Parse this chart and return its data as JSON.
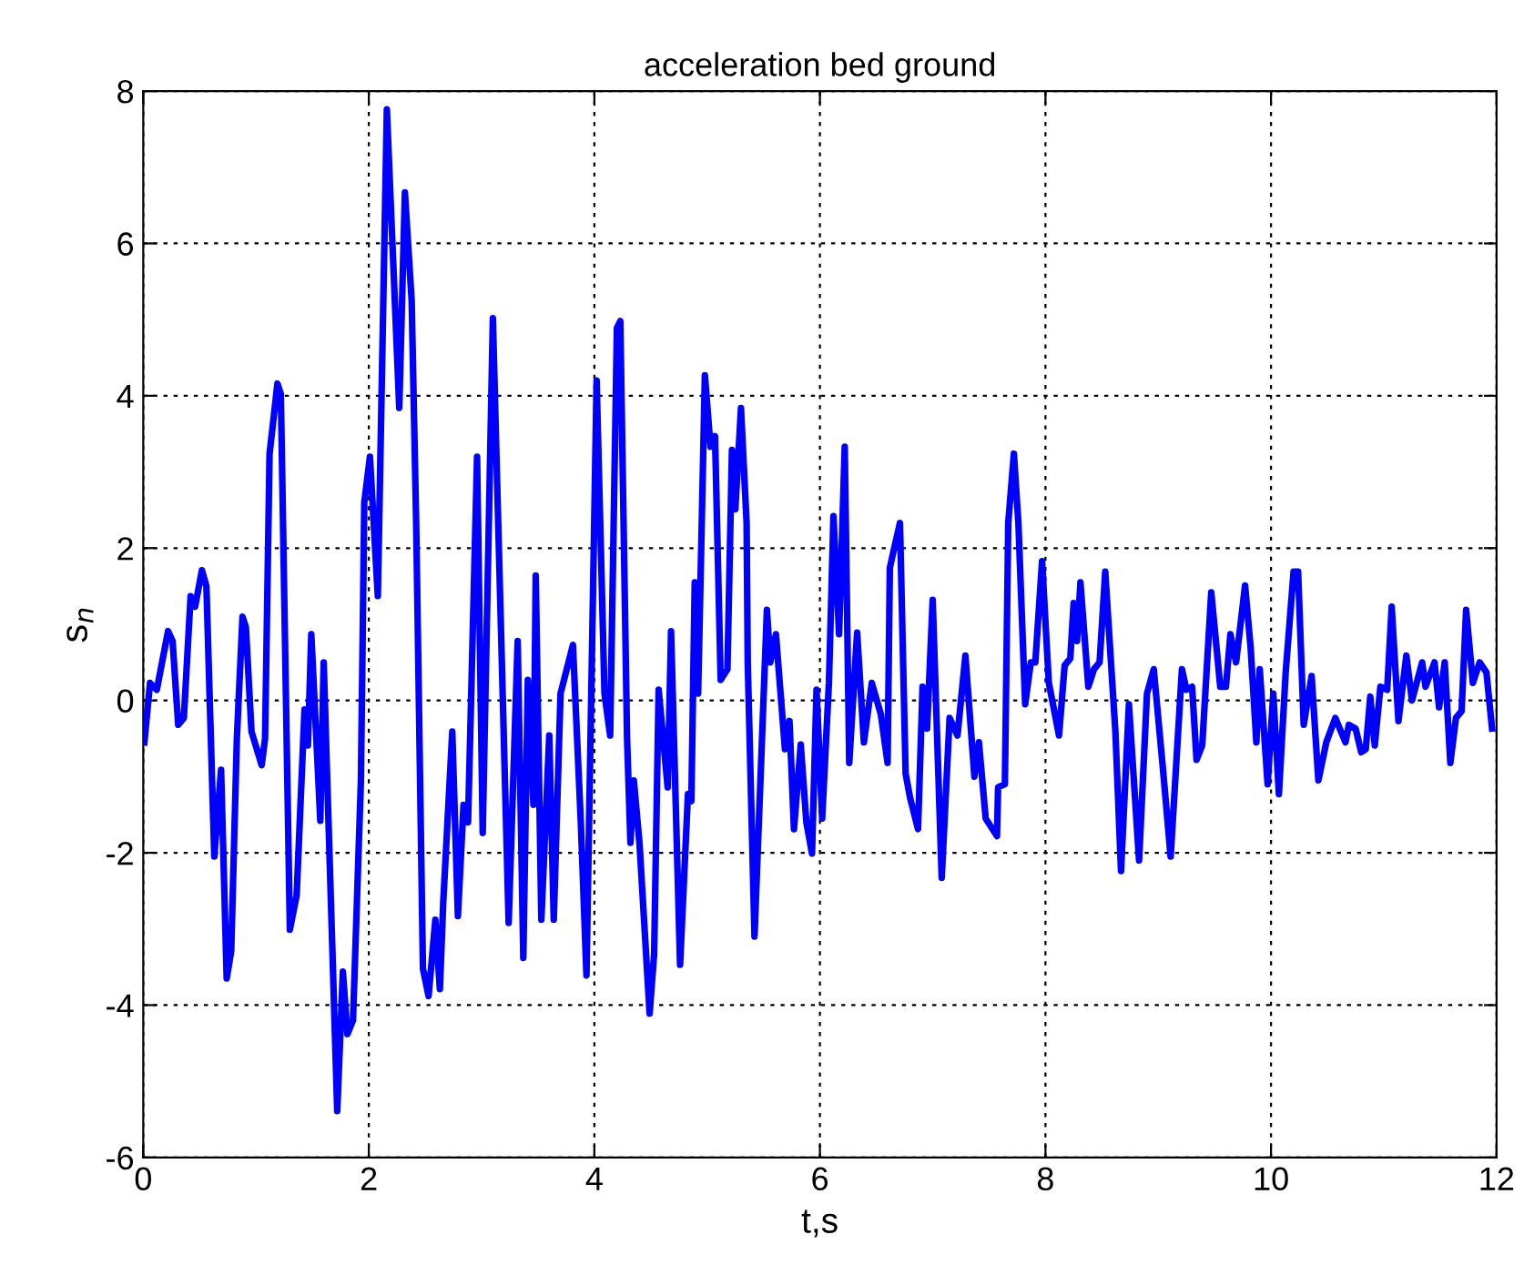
{
  "chart_data": {
    "type": "line",
    "title": "acceleration bed ground",
    "xlabel": "t,s",
    "ylabel": "s$_{n}$",
    "xlim": [
      0,
      12
    ],
    "ylim": [
      -6,
      8
    ],
    "xticks": [
      0,
      2,
      4,
      6,
      8,
      10,
      12
    ],
    "yticks": [
      -6,
      -4,
      -2,
      0,
      2,
      4,
      6,
      8
    ],
    "grid": true,
    "marker": "none",
    "line_style": "solid",
    "series": [
      {
        "color": "#0000ff",
        "x": [
          0.01,
          0.06,
          0.12,
          0.22,
          0.26,
          0.31,
          0.36,
          0.42,
          0.46,
          0.52,
          0.56,
          0.63,
          0.69,
          0.74,
          0.78,
          0.83,
          0.88,
          0.91,
          0.96,
          1.05,
          1.08,
          1.12,
          1.19,
          1.22,
          1.3,
          1.36,
          1.43,
          1.46,
          1.49,
          1.57,
          1.6,
          1.72,
          1.77,
          1.81,
          1.86,
          1.93,
          1.96,
          2.01,
          2.08,
          2.16,
          2.27,
          2.32,
          2.38,
          2.42,
          2.48,
          2.53,
          2.59,
          2.63,
          2.66,
          2.74,
          2.79,
          2.84,
          2.88,
          2.96,
          3.01,
          3.1,
          3.24,
          3.32,
          3.37,
          3.41,
          3.46,
          3.48,
          3.53,
          3.6,
          3.64,
          3.7,
          3.81,
          3.88,
          3.93,
          4.02,
          4.09,
          4.14,
          4.2,
          4.23,
          4.29,
          4.32,
          4.35,
          4.4,
          4.49,
          4.53,
          4.57,
          4.61,
          4.65,
          4.68,
          4.76,
          4.83,
          4.86,
          4.89,
          4.92,
          4.98,
          5.03,
          5.07,
          5.12,
          5.18,
          5.22,
          5.25,
          5.3,
          5.35,
          5.36,
          5.42,
          5.53,
          5.56,
          5.61,
          5.69,
          5.73,
          5.77,
          5.83,
          5.88,
          5.93,
          5.97,
          6.02,
          6.08,
          6.12,
          6.17,
          6.22,
          6.26,
          6.33,
          6.39,
          6.46,
          6.54,
          6.6,
          6.62,
          6.66,
          6.71,
          6.76,
          6.8,
          6.87,
          6.91,
          6.95,
          7.0,
          7.08,
          7.15,
          7.22,
          7.29,
          7.37,
          7.41,
          7.47,
          7.57,
          7.58,
          7.64,
          7.67,
          7.72,
          7.76,
          7.82,
          7.87,
          7.91,
          7.97,
          8.03,
          8.12,
          8.17,
          8.22,
          8.25,
          8.28,
          8.31,
          8.38,
          8.43,
          8.48,
          8.53,
          8.62,
          8.67,
          8.74,
          8.83,
          8.9,
          8.96,
          9.04,
          9.11,
          9.21,
          9.25,
          9.3,
          9.34,
          9.39,
          9.47,
          9.55,
          9.6,
          9.64,
          9.69,
          9.77,
          9.82,
          9.87,
          9.9,
          9.97,
          10.02,
          10.07,
          10.13,
          10.2,
          10.24,
          10.29,
          10.36,
          10.42,
          10.49,
          10.57,
          10.66,
          10.69,
          10.75,
          10.8,
          10.84,
          10.88,
          10.92,
          10.97,
          11.03,
          11.07,
          11.13,
          11.2,
          11.25,
          11.34,
          11.37,
          11.45,
          11.49,
          11.54,
          11.59,
          11.64,
          11.69,
          11.73,
          11.79,
          11.85,
          11.91,
          11.96
        ],
        "values": [
          -0.55,
          0.23,
          0.14,
          0.91,
          0.78,
          -0.32,
          -0.23,
          1.37,
          1.23,
          1.71,
          1.5,
          -2.05,
          -0.91,
          -3.65,
          -3.29,
          -0.5,
          1.1,
          0.96,
          -0.41,
          -0.85,
          -0.5,
          3.24,
          4.16,
          4.02,
          -3.01,
          -2.56,
          -0.12,
          -0.59,
          0.87,
          -1.58,
          0.5,
          -5.39,
          -3.56,
          -4.38,
          -4.2,
          -1.05,
          2.6,
          3.2,
          1.37,
          7.76,
          3.84,
          6.67,
          5.25,
          2.33,
          -3.52,
          -3.88,
          -2.88,
          -3.79,
          -2.65,
          -0.41,
          -2.83,
          -1.37,
          -1.6,
          3.2,
          -1.74,
          5.02,
          -2.92,
          0.78,
          -3.38,
          0.27,
          -1.37,
          1.64,
          -2.88,
          -0.46,
          -2.88,
          0.09,
          0.73,
          -1.6,
          -3.61,
          4.2,
          0.09,
          -0.46,
          4.89,
          4.98,
          -0.5,
          -1.87,
          -1.05,
          -1.87,
          -4.11,
          -3.33,
          0.14,
          -0.5,
          -1.14,
          0.91,
          -3.47,
          -1.23,
          -1.32,
          1.55,
          0.09,
          4.27,
          3.33,
          3.47,
          0.27,
          0.41,
          3.29,
          2.51,
          3.84,
          2.33,
          0.5,
          -3.1,
          1.19,
          0.5,
          0.87,
          -0.64,
          -0.27,
          -1.69,
          -0.58,
          -1.6,
          -2.01,
          0.14,
          -1.55,
          0.23,
          2.42,
          0.87,
          3.33,
          -0.82,
          0.89,
          -0.55,
          0.23,
          -0.18,
          -0.82,
          1.74,
          2.01,
          2.33,
          -0.96,
          -1.28,
          -1.69,
          0.18,
          -0.37,
          1.32,
          -2.33,
          -0.23,
          -0.46,
          0.59,
          -1.0,
          -0.55,
          -1.55,
          -1.78,
          -1.14,
          -1.1,
          2.33,
          3.24,
          2.33,
          -0.05,
          0.5,
          0.5,
          1.83,
          0.23,
          -0.46,
          0.46,
          0.55,
          1.28,
          0.78,
          1.55,
          0.18,
          0.41,
          0.5,
          1.69,
          -0.41,
          -2.24,
          -0.05,
          -2.1,
          0.09,
          0.41,
          -0.87,
          -2.05,
          0.41,
          0.14,
          0.18,
          -0.78,
          -0.59,
          1.42,
          0.18,
          0.18,
          0.87,
          0.5,
          1.51,
          0.68,
          -0.55,
          0.41,
          -1.1,
          0.09,
          -1.23,
          0.37,
          1.69,
          1.69,
          -0.32,
          0.32,
          -1.05,
          -0.55,
          -0.23,
          -0.55,
          -0.32,
          -0.37,
          -0.68,
          -0.64,
          0.05,
          -0.59,
          0.18,
          0.14,
          1.23,
          -0.27,
          0.59,
          0.0,
          0.5,
          0.18,
          0.5,
          -0.09,
          0.5,
          -0.82,
          -0.23,
          -0.14,
          1.19,
          0.23,
          0.5,
          0.37,
          -0.37
        ]
      }
    ]
  }
}
